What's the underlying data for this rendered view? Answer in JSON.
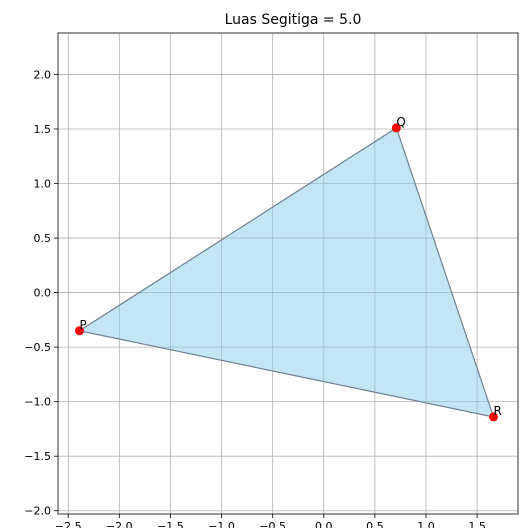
{
  "chart_data": {
    "type": "scatter",
    "title": "Luas Segitiga = 5.0",
    "xlabel": "",
    "ylabel": "",
    "xlim": [
      -2.6,
      1.9
    ],
    "ylim": [
      -2.03,
      2.38
    ],
    "grid": true,
    "x_ticks": [
      -2.5,
      -2.0,
      -1.5,
      -1.0,
      -0.5,
      0.0,
      0.5,
      1.0,
      1.5
    ],
    "x_tick_labels": [
      "−2.5",
      "−2.0",
      "−1.5",
      "−1.0",
      "−0.5",
      "0.0",
      "0.5",
      "1.0",
      "1.5"
    ],
    "y_ticks": [
      -2.0,
      -1.5,
      -1.0,
      -0.5,
      0.0,
      0.5,
      1.0,
      1.5,
      2.0
    ],
    "y_tick_labels": [
      "−2.0",
      "−1.5",
      "−1.0",
      "−0.5",
      "0.0",
      "0.5",
      "1.0",
      "1.5",
      "2.0"
    ],
    "points": [
      {
        "label": "P",
        "x": -2.39,
        "y": -0.35
      },
      {
        "label": "Q",
        "x": 0.71,
        "y": 1.51
      },
      {
        "label": "R",
        "x": 1.66,
        "y": -1.14
      }
    ],
    "colors": {
      "fill": "#87ceeb",
      "edge": "#708090",
      "point": "#ff0000"
    }
  }
}
